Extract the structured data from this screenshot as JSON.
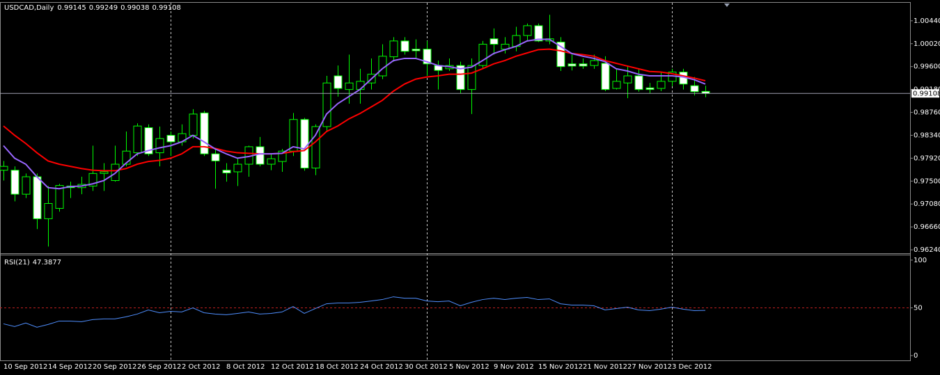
{
  "chart_data": [
    {
      "type": "candlestick",
      "title": "USDCAD,Daily",
      "categories": [
        "10 Sep 2012",
        null,
        null,
        null,
        "14 Sep 2012",
        null,
        null,
        null,
        "20 Sep 2012",
        null,
        null,
        null,
        "26 Sep 2012",
        null,
        null,
        null,
        "2 Oct 2012",
        null,
        null,
        null,
        "8 Oct 2012",
        null,
        null,
        null,
        "12 Oct 2012",
        null,
        null,
        null,
        "18 Oct 2012",
        null,
        null,
        null,
        "24 Oct 2012",
        null,
        null,
        null,
        "30 Oct 2012",
        null,
        null,
        null,
        "5 Nov 2012",
        null,
        null,
        null,
        "9 Nov 2012",
        null,
        null,
        null,
        "15 Nov 2012",
        null,
        null,
        null,
        "21 Nov 2012",
        null,
        null,
        null,
        "27 Nov 2012",
        null,
        null,
        null,
        "3 Dec 2012",
        null,
        null,
        null
      ],
      "open": [
        0.977,
        0.977,
        0.9726,
        0.9758,
        0.9681,
        0.97,
        0.9741,
        0.9738,
        0.9741,
        0.9764,
        0.9751,
        0.9781,
        0.9802,
        0.9848,
        0.9802,
        0.9834,
        0.9822,
        0.9834,
        0.9875,
        0.98,
        0.977,
        0.9767,
        0.9781,
        0.9813,
        0.9781,
        0.9786,
        0.9805,
        0.9863,
        0.9774,
        0.985,
        0.9943,
        0.9918,
        0.9918,
        0.993,
        0.9943,
        0.9978,
        1.0007,
        0.9992,
        0.9992,
        0.9962,
        0.9956,
        0.9962,
        0.9918,
        0.9962,
        1.0011,
        0.9992,
        0.9997,
        1.0017,
        1.0035,
        1.0007,
        1.0005,
        0.9965,
        0.9965,
        0.9962,
        0.9966,
        0.992,
        0.993,
        0.9943,
        0.9921,
        0.992,
        0.9933,
        0.995,
        0.9925,
        0.99145
      ],
      "high": [
        0.9787,
        0.9777,
        0.9764,
        0.9764,
        0.9741,
        0.9745,
        0.9749,
        0.9758,
        0.9815,
        0.9783,
        0.9815,
        0.9841,
        0.9856,
        0.9854,
        0.985,
        0.9841,
        0.9854,
        0.9882,
        0.9879,
        0.9809,
        0.9783,
        0.9792,
        0.9815,
        0.9831,
        0.98,
        0.9809,
        0.9875,
        0.9866,
        0.9854,
        0.9943,
        0.9962,
        0.9982,
        0.9956,
        0.9975,
        1.0001,
        1.0014,
        1.0014,
        1.001,
        1.0007,
        0.9971,
        0.9975,
        0.9969,
        0.9975,
        1.0007,
        1.003,
        1.0014,
        1.0033,
        1.0039,
        1.0039,
        1.0055,
        1.0014,
        0.9982,
        0.9975,
        0.9982,
        0.9979,
        0.9956,
        0.9962,
        0.9956,
        0.993,
        0.995,
        0.9956,
        0.9956,
        0.9941,
        0.99249
      ],
      "low": [
        0.9751,
        0.9713,
        0.9719,
        0.9662,
        0.963,
        0.9694,
        0.9719,
        0.9726,
        0.9732,
        0.9732,
        0.9749,
        0.9777,
        0.9796,
        0.9796,
        0.9777,
        0.9796,
        0.9815,
        0.9828,
        0.9796,
        0.9736,
        0.9749,
        0.9741,
        0.9758,
        0.9777,
        0.977,
        0.9767,
        0.9796,
        0.9769,
        0.9761,
        0.9841,
        0.9905,
        0.9892,
        0.9892,
        0.9918,
        0.9937,
        0.9969,
        0.9982,
        0.9975,
        0.9943,
        0.9918,
        0.9952,
        0.9911,
        0.9873,
        0.9956,
        0.9982,
        0.9984,
        0.9988,
        1.0007,
        1.0005,
        1.0001,
        0.9952,
        0.9953,
        0.9956,
        0.9956,
        0.9915,
        0.9918,
        0.9902,
        0.9914,
        0.9911,
        0.9915,
        0.9924,
        0.9918,
        0.9907,
        0.99038
      ],
      "close": [
        0.9777,
        0.9726,
        0.9758,
        0.9681,
        0.9709,
        0.9742,
        0.9738,
        0.9744,
        0.9764,
        0.9767,
        0.9781,
        0.9805,
        0.9851,
        0.98,
        0.9828,
        0.9822,
        0.9837,
        0.9873,
        0.98,
        0.9787,
        0.9765,
        0.9781,
        0.9813,
        0.9781,
        0.9791,
        0.9805,
        0.9863,
        0.9774,
        0.985,
        0.993,
        0.992,
        0.993,
        0.9933,
        0.9946,
        0.9979,
        1.0007,
        0.9988,
        0.9989,
        0.9965,
        0.9953,
        0.9962,
        0.9918,
        0.9962,
        1.0001,
        1.0001,
        1.0001,
        1.0017,
        1.0035,
        1.0007,
        1.0011,
        0.996,
        0.9961,
        0.9961,
        0.9971,
        0.9918,
        0.9933,
        0.9943,
        0.9918,
        0.9918,
        0.9933,
        0.995,
        0.9928,
        0.9914,
        0.99108
      ],
      "up_color": "#000000",
      "down_color": "#ffffff",
      "wick_color": "#00ff00",
      "overlays": [
        {
          "color": "#ff0000",
          "values": [
            0.9851,
            0.9834,
            0.9819,
            0.9802,
            0.9787,
            0.9781,
            0.9777,
            0.9773,
            0.977,
            0.9769,
            0.9769,
            0.9773,
            0.9781,
            0.9786,
            0.9788,
            0.9792,
            0.98,
            0.9813,
            0.9813,
            0.981,
            0.9805,
            0.9802,
            0.9801,
            0.98,
            0.98,
            0.9801,
            0.9804,
            0.9806,
            0.9822,
            0.9841,
            0.9851,
            0.9864,
            0.9874,
            0.9886,
            0.9898,
            0.9915,
            0.9928,
            0.9937,
            0.9941,
            0.9943,
            0.9946,
            0.9946,
            0.9948,
            0.9956,
            0.9965,
            0.9971,
            0.9979,
            0.9985,
            0.9991,
            0.9992,
            0.9989,
            0.9984,
            0.9982,
            0.9979,
            0.9971,
            0.9966,
            0.9961,
            0.9956,
            0.9951,
            0.995,
            0.9947,
            0.9943,
            0.9939,
            0.9934
          ]
        },
        {
          "color": "#9966ff",
          "values": [
            0.9815,
            0.9792,
            0.9781,
            0.9758,
            0.9738,
            0.9736,
            0.974,
            0.9741,
            0.9745,
            0.9751,
            0.9764,
            0.9783,
            0.98,
            0.9806,
            0.9811,
            0.9815,
            0.9822,
            0.9834,
            0.9822,
            0.9809,
            0.98,
            0.9792,
            0.9795,
            0.98,
            0.98,
            0.9801,
            0.9813,
            0.9809,
            0.9834,
            0.9873,
            0.9892,
            0.9905,
            0.9918,
            0.9937,
            0.9956,
            0.9971,
            0.9975,
            0.9975,
            0.9969,
            0.9962,
            0.996,
            0.9956,
            0.9959,
            0.9971,
            0.9984,
            0.9991,
            0.9997,
            1.0007,
            1.001,
            1.001,
            0.9997,
            0.9984,
            0.9979,
            0.9975,
            0.9969,
            0.9956,
            0.9952,
            0.9946,
            0.9943,
            0.9943,
            0.9943,
            0.9941,
            0.9936,
            0.9928
          ]
        }
      ],
      "ylim": [
        0.9619,
        1.0077
      ],
      "yticks": [
        {
          "value": 1.0044,
          "label": "1.00440"
        },
        {
          "value": 1.0002,
          "label": "1.00020"
        },
        {
          "value": 0.996,
          "label": "0.99600"
        },
        {
          "value": 0.9918,
          "label": "0.99180"
        },
        {
          "value": 0.9876,
          "label": "0.98760"
        },
        {
          "value": 0.9834,
          "label": "0.98340"
        },
        {
          "value": 0.9792,
          "label": "0.97920"
        },
        {
          "value": 0.975,
          "label": "0.97500"
        },
        {
          "value": 0.9708,
          "label": "0.97080"
        },
        {
          "value": 0.9666,
          "label": "0.96660"
        },
        {
          "value": 0.9624,
          "label": "0.96240"
        }
      ]
    },
    {
      "type": "line",
      "title": "RSI(21)",
      "color": "#4f8fff",
      "values": [
        33.3,
        30.4,
        34.1,
        29.7,
        32.6,
        36.2,
        36.2,
        35.5,
        37.7,
        38.4,
        38.4,
        40.6,
        43.5,
        47.8,
        44.9,
        46.4,
        45.7,
        50.0,
        44.9,
        43.5,
        42.8,
        44.2,
        45.7,
        43.5,
        44.2,
        45.7,
        51.4,
        44.2,
        49.3,
        54.3,
        55.1,
        55.1,
        55.8,
        57.2,
        58.7,
        61.6,
        60.1,
        60.1,
        57.2,
        56.5,
        57.2,
        52.2,
        55.8,
        58.7,
        60.1,
        58.7,
        60.1,
        60.9,
        58.7,
        59.4,
        54.3,
        52.9,
        52.9,
        52.2,
        47.8,
        49.3,
        50.7,
        47.8,
        47.1,
        48.6,
        50.7,
        48.6,
        47.1,
        47.3877
      ],
      "ylim": [
        -5,
        105
      ],
      "yticks": [
        0,
        50,
        100
      ],
      "levels": [
        50
      ],
      "level_color": "#c02020"
    }
  ]
}
